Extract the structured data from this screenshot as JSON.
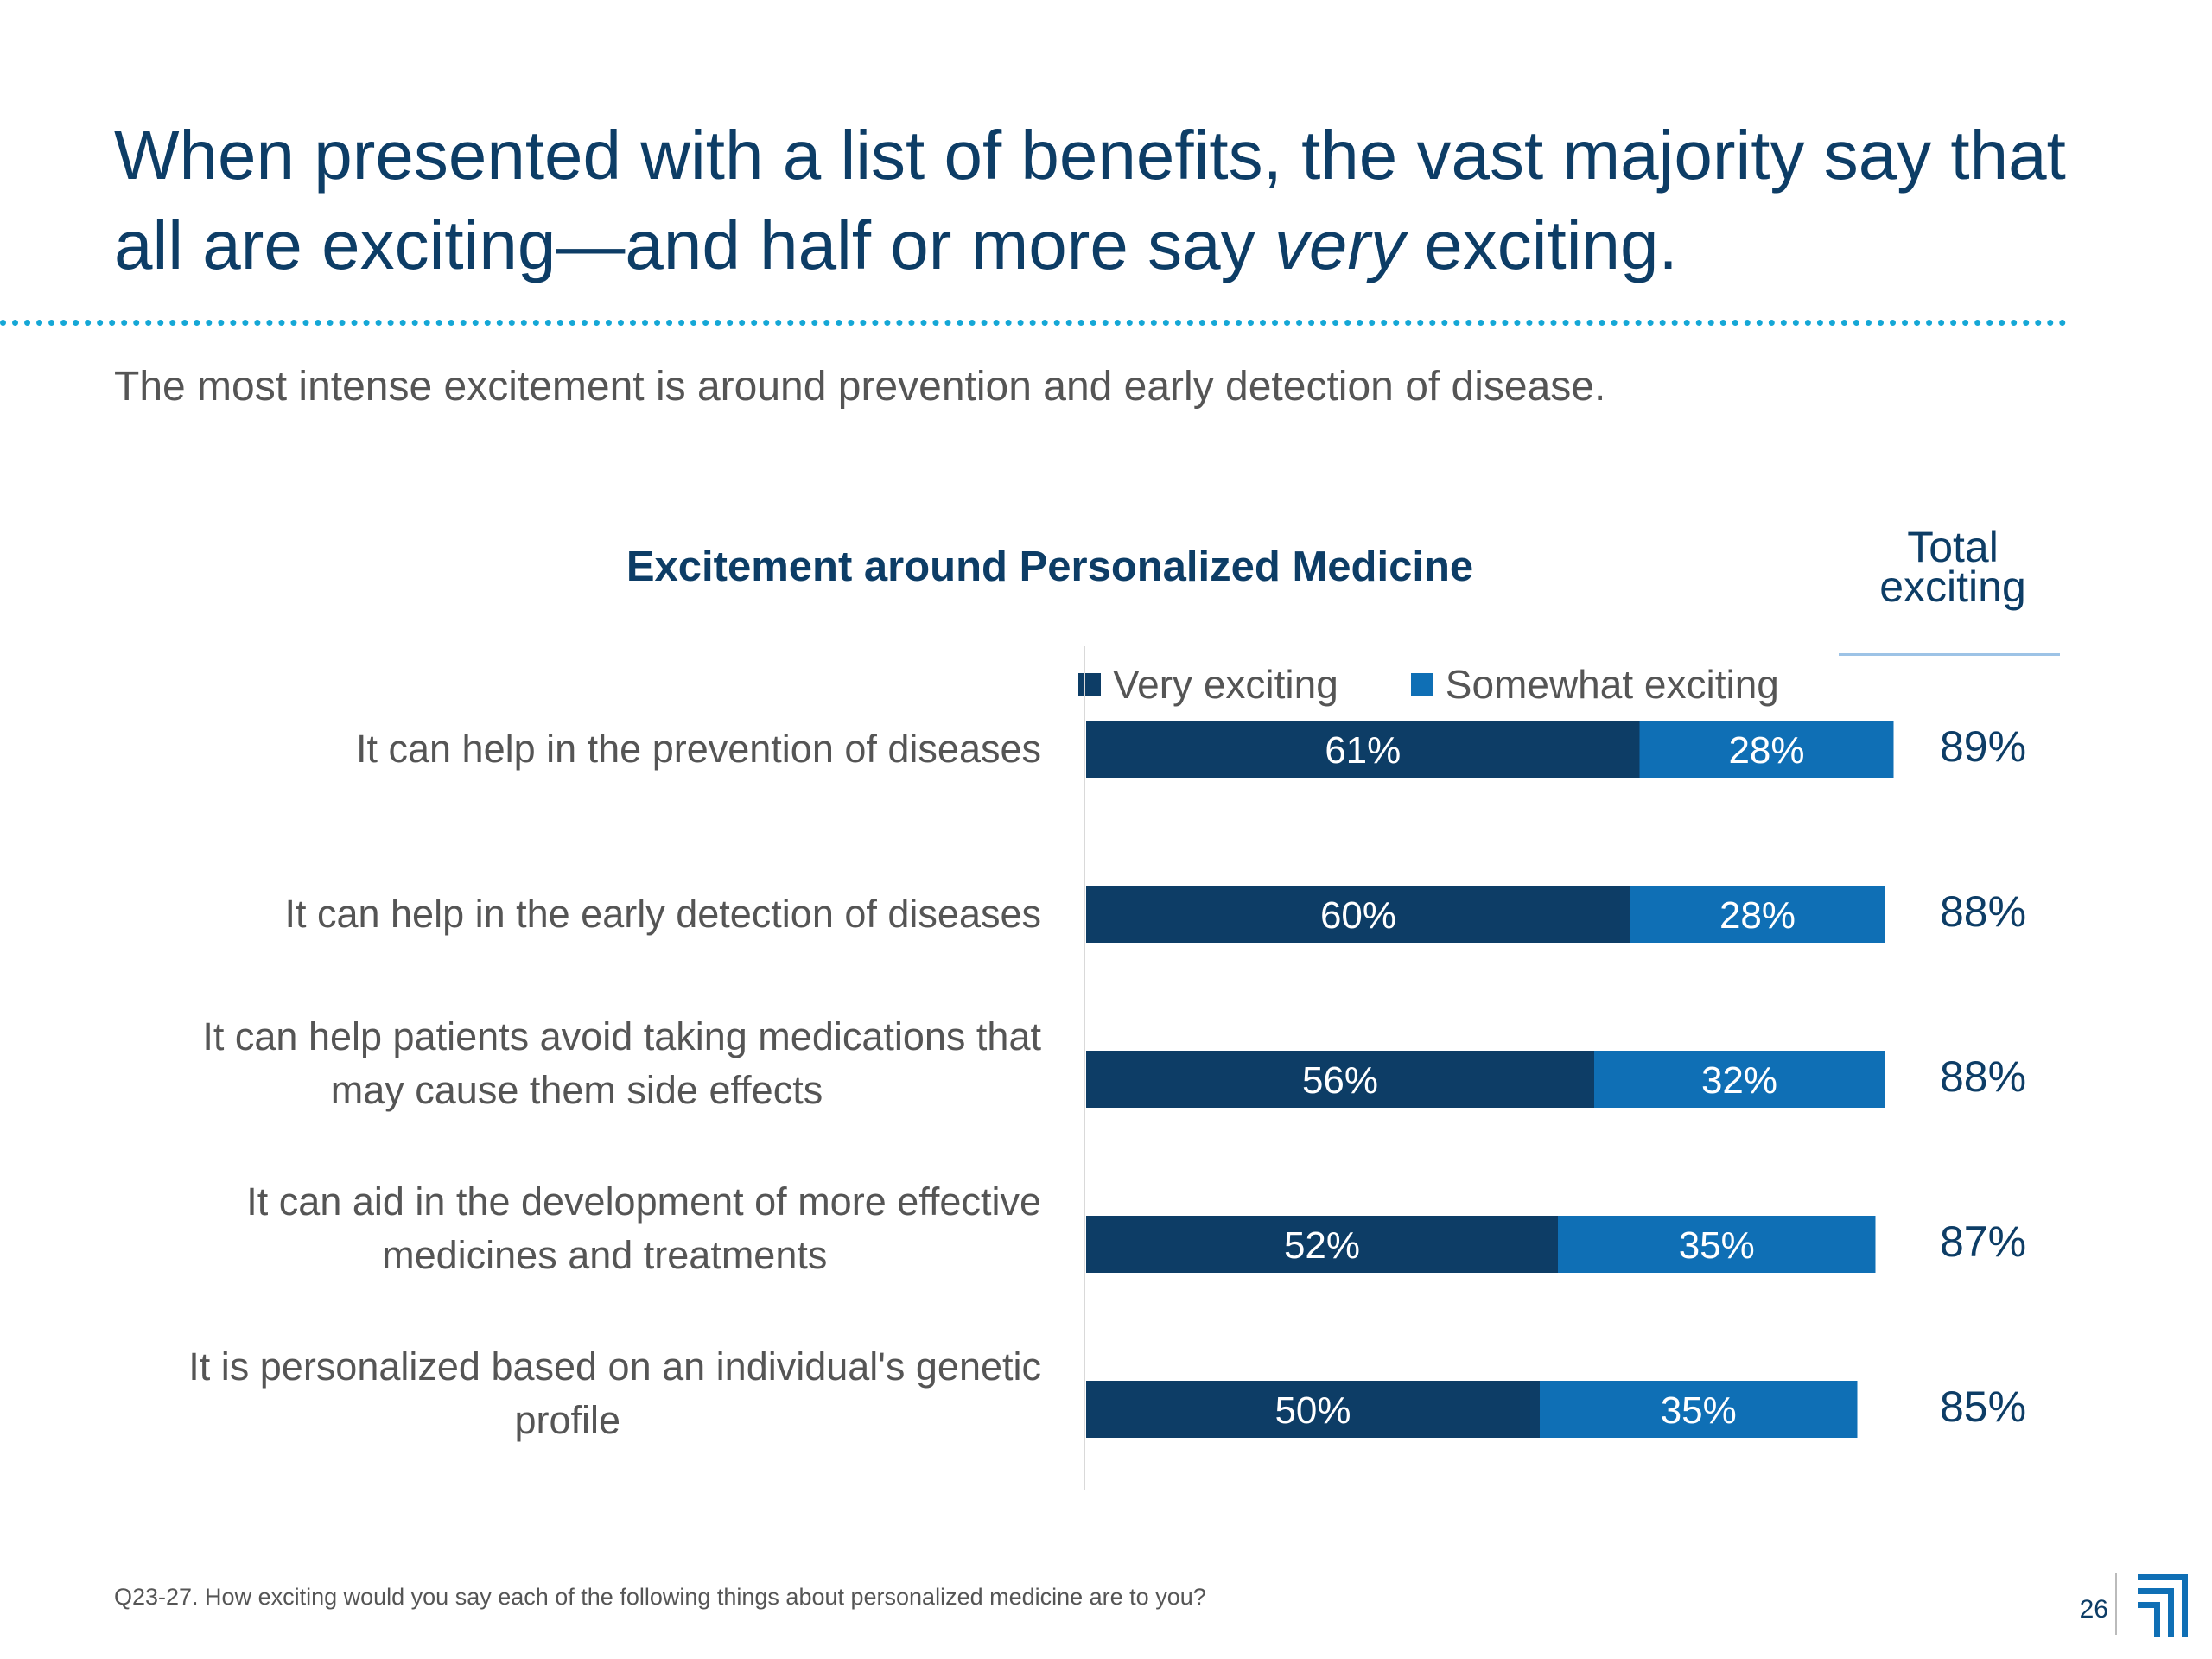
{
  "headline": {
    "line1": "When presented with a list of benefits, the vast majority say that",
    "line2_pre": "all are exciting—and half or more say ",
    "line2_italic": "very",
    "line2_post": " exciting."
  },
  "subtitle": "The most intense excitement is around prevention and early detection of disease.",
  "footnote": "Q23-27. How exciting would you say each of the following things about personalized medicine are to you?",
  "page_number": "26",
  "total_header": [
    "Total",
    "exciting"
  ],
  "colors": {
    "very_exciting": "#0d3d66",
    "somewhat_exciting": "#0f6fb5",
    "title": "#0d3d66",
    "body_text": "#555555",
    "divider": "#15a7d6"
  },
  "logo_icon": "company-logo-icon",
  "chart_data": {
    "type": "bar",
    "orientation": "horizontal",
    "stacked": true,
    "title": "Excitement around Personalized Medicine",
    "categories": [
      [
        "It can help in the prevention of diseases"
      ],
      [
        "It can help in the early detection of diseases"
      ],
      [
        "It can help patients avoid taking medications that",
        "may cause them side effects"
      ],
      [
        "It can aid in the development of more effective",
        "medicines and treatments"
      ],
      [
        "It is personalized based on an individual's genetic",
        "profile"
      ]
    ],
    "series": [
      {
        "name": "Very exciting",
        "values": [
          61,
          60,
          56,
          52,
          50
        ]
      },
      {
        "name": "Somewhat exciting",
        "values": [
          28,
          28,
          32,
          35,
          35
        ]
      }
    ],
    "totals": [
      89,
      88,
      88,
      87,
      85
    ],
    "value_suffix": "%",
    "legend": "top",
    "grid": false
  }
}
